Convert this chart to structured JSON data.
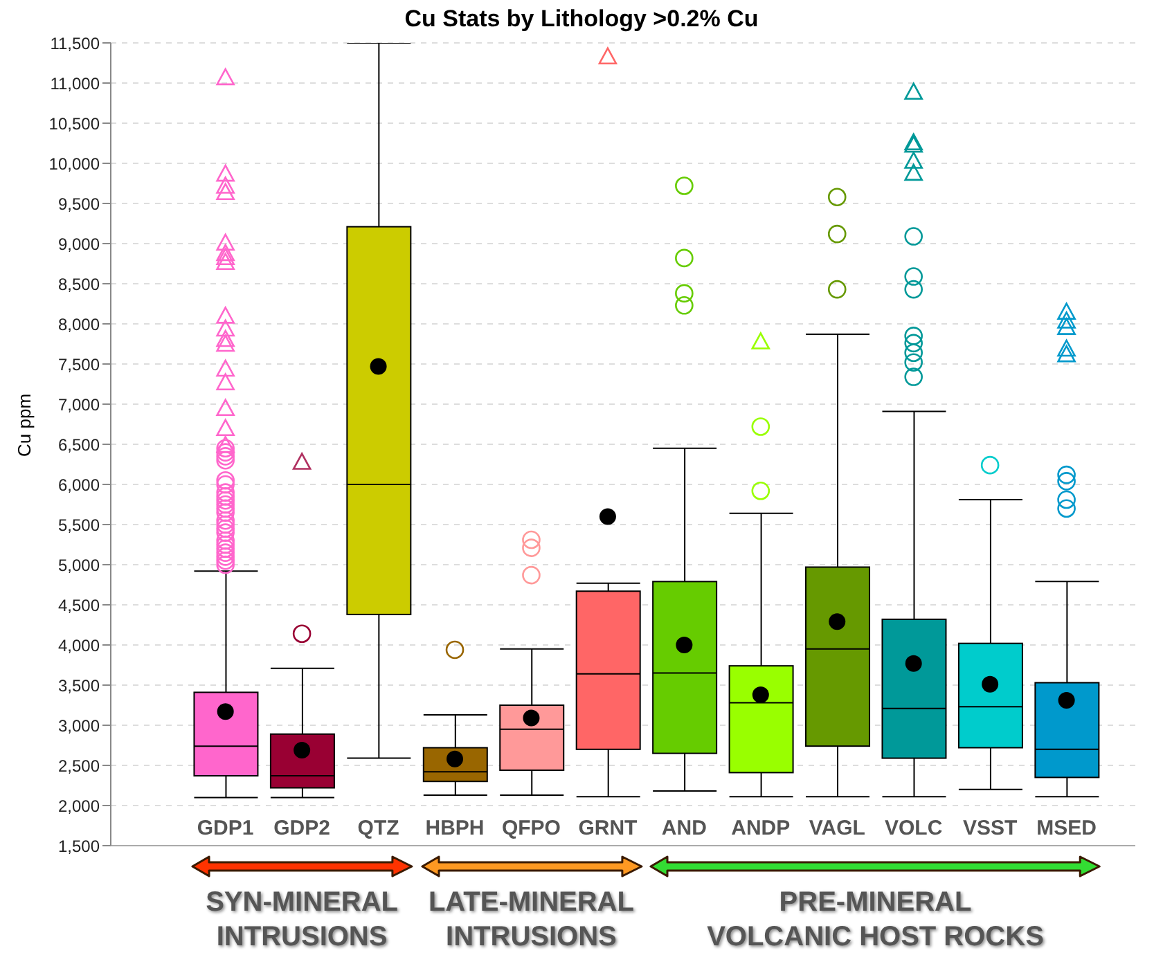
{
  "chart_data": {
    "type": "box",
    "title": "Cu Stats by Lithology >0.2% Cu",
    "ylabel": "Cu ppm",
    "categories": [
      "GDP1",
      "GDP2",
      "QTZ",
      "HBPH",
      "QFPO",
      "GRNT",
      "AND",
      "ANDP",
      "VAGL",
      "VOLC",
      "VSST",
      "MSED"
    ],
    "colors": [
      "#ff66cc",
      "#990033",
      "#cccc00",
      "#996600",
      "#ff9999",
      "#ff6666",
      "#66cc00",
      "#99ff00",
      "#669900",
      "#009999",
      "#00cccc",
      "#0099cc"
    ],
    "boxes": [
      {
        "low": 2100,
        "q1": 2370,
        "median": 2740,
        "q3": 3410,
        "high": 4920,
        "mean": 3170,
        "outliers": [
          6450,
          6400,
          6350,
          6300,
          6050,
          6000,
          5900,
          5850,
          5800,
          5750,
          5700,
          5650,
          5550,
          5500,
          5450,
          5400,
          5300,
          5250,
          5200,
          5150,
          5100,
          5050,
          5000
        ]
      },
      {
        "low": 2100,
        "q1": 2220,
        "median": 2370,
        "q3": 2890,
        "high": 3710,
        "mean": 2690,
        "outliers": [
          4140
        ]
      },
      {
        "low": 2590,
        "q1": 4380,
        "median": 6000,
        "q3": 9210,
        "high": 11500,
        "mean": 7470
      },
      {
        "low": 2130,
        "q1": 2300,
        "median": 2420,
        "q3": 2720,
        "high": 3130,
        "mean": 2580,
        "outliers": [
          3940
        ]
      },
      {
        "low": 2130,
        "q1": 2440,
        "median": 2950,
        "q3": 3250,
        "high": 3950,
        "mean": 3090,
        "outliers": [
          5310,
          5210,
          4870
        ]
      },
      {
        "low": 2110,
        "q1": 2700,
        "median": 3640,
        "q3": 4670,
        "high": 4770,
        "mean": 5600
      },
      {
        "low": 2180,
        "q1": 2650,
        "median": 3650,
        "q3": 4790,
        "high": 6450,
        "mean": 4000,
        "outliers": [
          9720,
          8820,
          8380,
          8230
        ]
      },
      {
        "low": 2110,
        "q1": 2410,
        "median": 3280,
        "q3": 3740,
        "high": 5640,
        "mean": 3380,
        "outliers": [
          6720,
          5920
        ]
      },
      {
        "low": 2110,
        "q1": 2740,
        "median": 3950,
        "q3": 4970,
        "high": 7870,
        "mean": 4290,
        "outliers": [
          9580,
          9120,
          8430
        ]
      },
      {
        "low": 2110,
        "q1": 2590,
        "median": 3210,
        "q3": 4320,
        "high": 6910,
        "mean": 3770,
        "outliers": [
          9090,
          8590,
          8430,
          7850,
          7760,
          7640,
          7520,
          7340
        ]
      },
      {
        "low": 2200,
        "q1": 2720,
        "median": 3230,
        "q3": 4020,
        "high": 5810,
        "mean": 3510,
        "outliers": [
          6240
        ]
      },
      {
        "low": 2110,
        "q1": 2350,
        "median": 2700,
        "q3": 3530,
        "high": 4790,
        "mean": 3310,
        "outliers": [
          6120,
          6040,
          5810,
          5700
        ]
      }
    ],
    "series": [
      {
        "type": "scatter",
        "marker": "triangle",
        "x": [
          "GDP1",
          "GDP1",
          "GDP1",
          "GDP1",
          "GDP1",
          "GDP1",
          "GDP1",
          "GDP1",
          "GDP1",
          "GDP1",
          "GDP1",
          "GDP1",
          "GDP1",
          "GDP1",
          "GDP1",
          "GDP1",
          "GDP1",
          "GDP2",
          "GRNT",
          "ANDP",
          "VOLC",
          "VOLC",
          "VOLC",
          "VOLC",
          "VOLC",
          "MSED",
          "MSED",
          "MSED",
          "MSED",
          "MSED"
        ],
        "values": [
          11070,
          9870,
          9720,
          9640,
          9010,
          8880,
          8830,
          8770,
          8100,
          7940,
          7810,
          7750,
          7440,
          7270,
          6950,
          6700,
          6490,
          6280,
          11330,
          7780,
          10890,
          10260,
          10230,
          10030,
          9880,
          8150,
          8040,
          7960,
          7690,
          7620
        ],
        "colors": [
          "#ff66cc",
          "#ff66cc",
          "#ff66cc",
          "#ff66cc",
          "#ff66cc",
          "#ff66cc",
          "#ff66cc",
          "#ff66cc",
          "#ff66cc",
          "#ff66cc",
          "#ff66cc",
          "#ff66cc",
          "#ff66cc",
          "#ff66cc",
          "#ff66cc",
          "#ff66cc",
          "#ff66cc",
          "#b03060",
          "#ff6666",
          "#99ff00",
          "#009999",
          "#009999",
          "#009999",
          "#009999",
          "#009999",
          "#0099cc",
          "#0099cc",
          "#0099cc",
          "#0099cc",
          "#0099cc"
        ]
      }
    ],
    "ylim": [
      1500,
      11500
    ],
    "yticks": [
      {
        "value": 1500,
        "label": "1,500"
      },
      {
        "value": 2000,
        "label": "2,000"
      },
      {
        "value": 2500,
        "label": "2,500"
      },
      {
        "value": 3000,
        "label": "3,000"
      },
      {
        "value": 3500,
        "label": "3,500"
      },
      {
        "value": 4000,
        "label": "4,000"
      },
      {
        "value": 4500,
        "label": "4,500"
      },
      {
        "value": 5000,
        "label": "5,000"
      },
      {
        "value": 5500,
        "label": "5,500"
      },
      {
        "value": 6000,
        "label": "6,000"
      },
      {
        "value": 6500,
        "label": "6,500"
      },
      {
        "value": 7000,
        "label": "7,000"
      },
      {
        "value": 7500,
        "label": "7,500"
      },
      {
        "value": 8000,
        "label": "8,000"
      },
      {
        "value": 8500,
        "label": "8,500"
      },
      {
        "value": 9000,
        "label": "9,000"
      },
      {
        "value": 9500,
        "label": "9,500"
      },
      {
        "value": 10000,
        "label": "10,000"
      },
      {
        "value": 10500,
        "label": "10,500"
      },
      {
        "value": 11000,
        "label": "11,000"
      },
      {
        "value": 11500,
        "label": "11,500"
      }
    ],
    "grid": "y",
    "annotations": [
      "SYN-MINERAL\nINTRUSIONS",
      "LATE-MINERAL\nINTRUSIONS",
      "PRE-MINERAL\nVOLCANIC HOST ROCKS"
    ]
  }
}
